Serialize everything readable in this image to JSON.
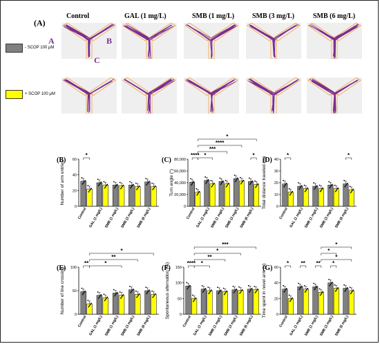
{
  "figure": {
    "panel_a_label": "(A)",
    "column_headers": [
      "Control",
      "GAL (1 mg/L)",
      "SMB (1 mg/L)",
      "SMB (3 mg/L)",
      "SMB (6 mg/L)"
    ],
    "arm_labels": {
      "a": "A",
      "b": "B",
      "c": "C"
    },
    "legend": [
      {
        "label": "- SCOP 100 μM",
        "color": "#808080"
      },
      {
        "label": "+ SCOP 100 μM",
        "color": "#ffff00"
      }
    ],
    "colors": {
      "minus_scop": "#808080",
      "plus_scop": "#ffff00",
      "track": "#7b2d8e",
      "arm_outline": "#f0a040"
    }
  },
  "chart_data": [
    {
      "panel": "(B)",
      "type": "bar",
      "categories": [
        "Control",
        "GAL (1 mg/L)",
        "SMB (1 mg/L)",
        "SMB (3 mg/L)",
        "SMB (6 mg/L)"
      ],
      "ylabel": "Number of arm entries",
      "ylim": [
        0,
        60
      ],
      "yticks": [
        0,
        20,
        40,
        60
      ],
      "series": [
        {
          "values": [
            32,
            30,
            27,
            27,
            31
          ]
        },
        {
          "values": [
            22,
            27,
            26,
            25,
            25
          ]
        }
      ],
      "brackets": [
        {
          "from": 0,
          "to": 1,
          "level": 1,
          "label": "*"
        }
      ]
    },
    {
      "panel": "(C)",
      "type": "bar",
      "categories": [
        "Control",
        "GAL (1 mg/L)",
        "SMB (1 mg/L)",
        "SMB (3 mg/L)",
        "SMB (6 mg/L)"
      ],
      "ylabel": "Turn angle (°)",
      "ylim": [
        0,
        80000
      ],
      "yticks": [
        0,
        20000,
        40000,
        60000,
        80000
      ],
      "ytick_labels": [
        "0",
        "20,000",
        "40,000",
        "60,000",
        "80,000"
      ],
      "series": [
        {
          "values": [
            41000,
            44000,
            42000,
            47000,
            42000
          ]
        },
        {
          "values": [
            24000,
            38000,
            38000,
            43000,
            37000
          ]
        }
      ],
      "brackets": [
        {
          "from": 0,
          "to": 1,
          "level": 1,
          "label": "****"
        },
        {
          "from": 1,
          "to": 3,
          "level": 1,
          "label": "*"
        },
        {
          "from": 1,
          "to": 5,
          "level": 2,
          "label": "***"
        },
        {
          "from": 8,
          "to": 9,
          "level": 1,
          "label": "*"
        },
        {
          "from": 1,
          "to": 7,
          "level": 3,
          "label": "****"
        },
        {
          "from": 1,
          "to": 9,
          "level": 4,
          "label": "*"
        }
      ]
    },
    {
      "panel": "(D)",
      "type": "bar",
      "categories": [
        "Control",
        "GAL (1 mg/L)",
        "SMB (1 mg/L)",
        "SMB (3 mg/L)",
        "SMB (6 mg/L)"
      ],
      "ylabel": "Total distance traveled (m)",
      "ylim": [
        0,
        40
      ],
      "yticks": [
        0,
        10,
        20,
        30,
        40
      ],
      "series": [
        {
          "values": [
            19,
            17,
            17,
            18,
            19
          ]
        },
        {
          "values": [
            12,
            15,
            15,
            15,
            14
          ]
        }
      ],
      "brackets": [
        {
          "from": 0,
          "to": 1,
          "level": 1,
          "label": "*"
        },
        {
          "from": 8,
          "to": 9,
          "level": 1,
          "label": "*"
        }
      ]
    },
    {
      "panel": "(E)",
      "type": "bar",
      "categories": [
        "Control",
        "GAL (1 mg/L)",
        "SMB (1 mg/L)",
        "SMB (3 mg/L)",
        "SMB (6 mg/L)"
      ],
      "ylabel": "Number of line crossing",
      "ylim": [
        0,
        100
      ],
      "yticks": [
        0,
        50,
        100
      ],
      "series": [
        {
          "values": [
            48,
            40,
            45,
            52,
            50
          ]
        },
        {
          "values": [
            22,
            35,
            40,
            42,
            42
          ]
        }
      ],
      "brackets": [
        {
          "from": 0,
          "to": 1,
          "level": 1,
          "label": "**"
        },
        {
          "from": 1,
          "to": 5,
          "level": 1,
          "label": "*"
        },
        {
          "from": 1,
          "to": 7,
          "level": 2,
          "label": "**"
        },
        {
          "from": 1,
          "to": 9,
          "level": 3,
          "label": "*"
        }
      ]
    },
    {
      "panel": "(F)",
      "type": "bar",
      "categories": [
        "Control",
        "GAL (1 mg/L)",
        "SMB (1 mg/L)",
        "SMB (3 mg/L)",
        "SMB (6 mg/L)"
      ],
      "ylabel": "Spontaneous alternation (%)",
      "ylim": [
        0,
        150
      ],
      "yticks": [
        0,
        50,
        100,
        150
      ],
      "series": [
        {
          "values": [
            90,
            80,
            75,
            78,
            80
          ]
        },
        {
          "values": [
            50,
            75,
            72,
            76,
            78
          ]
        }
      ],
      "brackets": [
        {
          "from": 0,
          "to": 1,
          "level": 1,
          "label": "****"
        },
        {
          "from": 1,
          "to": 3,
          "level": 1,
          "label": "*"
        },
        {
          "from": 1,
          "to": 5,
          "level": 2,
          "label": "**"
        },
        {
          "from": 1,
          "to": 7,
          "level": 3,
          "label": "*"
        },
        {
          "from": 1,
          "to": 9,
          "level": 4,
          "label": "***"
        }
      ]
    },
    {
      "panel": "(G)",
      "type": "bar",
      "categories": [
        "Control",
        "GAL (1 mg/L)",
        "SMB (1 mg/L)",
        "SMB (3 mg/L)",
        "SMB (6 mg/L)"
      ],
      "ylabel": "Time spent in novel arm (s)",
      "ylim": [
        0,
        60
      ],
      "yticks": [
        0,
        20,
        40,
        60
      ],
      "series": [
        {
          "values": [
            32,
            35,
            35,
            40,
            33
          ]
        },
        {
          "values": [
            20,
            32,
            28,
            33,
            30
          ]
        }
      ],
      "brackets": [
        {
          "from": 0,
          "to": 1,
          "level": 1,
          "label": "*"
        },
        {
          "from": 2,
          "to": 3,
          "level": 1,
          "label": "**"
        },
        {
          "from": 4,
          "to": 5,
          "level": 1,
          "label": "**"
        },
        {
          "from": 6,
          "to": 7,
          "level": 1,
          "label": "*"
        },
        {
          "from": 5,
          "to": 9,
          "level": 2,
          "label": "*"
        },
        {
          "from": 5,
          "to": 7,
          "level": 3,
          "label": "*"
        },
        {
          "from": 5,
          "to": 9,
          "level": 4,
          "label": "*"
        }
      ]
    }
  ]
}
